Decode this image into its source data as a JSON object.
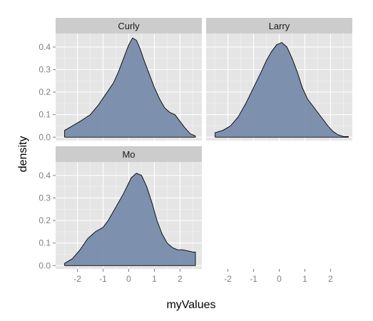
{
  "chart_data": {
    "type": "area",
    "xlabel": "myValues",
    "ylabel": "density",
    "xlim": [
      -2.85,
      2.85
    ],
    "ylim": [
      -0.015,
      0.46
    ],
    "x_ticks": [
      "-2",
      "-1",
      "0",
      "1",
      "2"
    ],
    "y_ticks": [
      "0.0",
      "0.1",
      "0.2",
      "0.3",
      "0.4"
    ],
    "grid": true,
    "fill_color": "#7186A6",
    "panel_background": "#E5E5E5",
    "strip_background": "#CCCCCC",
    "panels": [
      {
        "name": "Curly",
        "x": [
          -2.5,
          -2.2,
          -1.9,
          -1.5,
          -1.2,
          -0.9,
          -0.6,
          -0.4,
          -0.2,
          0,
          0.15,
          0.3,
          0.45,
          0.6,
          0.8,
          1.0,
          1.2,
          1.4,
          1.6,
          1.8,
          2.0,
          2.2,
          2.4,
          2.6
        ],
        "y": [
          0.03,
          0.05,
          0.07,
          0.1,
          0.14,
          0.19,
          0.24,
          0.29,
          0.35,
          0.41,
          0.44,
          0.43,
          0.39,
          0.34,
          0.28,
          0.22,
          0.17,
          0.13,
          0.11,
          0.1,
          0.07,
          0.04,
          0.015,
          0.005
        ]
      },
      {
        "name": "Larry",
        "x": [
          -2.5,
          -2.2,
          -1.9,
          -1.6,
          -1.3,
          -1.0,
          -0.7,
          -0.5,
          -0.3,
          -0.1,
          0.1,
          0.3,
          0.5,
          0.7,
          0.9,
          1.1,
          1.3,
          1.5,
          1.7,
          1.9,
          2.1,
          2.3,
          2.5,
          2.7
        ],
        "y": [
          0.02,
          0.03,
          0.05,
          0.09,
          0.15,
          0.22,
          0.29,
          0.34,
          0.38,
          0.41,
          0.42,
          0.4,
          0.35,
          0.29,
          0.22,
          0.17,
          0.14,
          0.11,
          0.08,
          0.05,
          0.025,
          0.01,
          0.003,
          0.002
        ]
      },
      {
        "name": "Mo",
        "x": [
          -2.5,
          -2.2,
          -1.9,
          -1.6,
          -1.3,
          -1.0,
          -0.8,
          -0.5,
          -0.2,
          0.1,
          0.3,
          0.5,
          0.7,
          0.9,
          1.1,
          1.3,
          1.5,
          1.7,
          1.9,
          2.1,
          2.3,
          2.5,
          2.6
        ],
        "y": [
          0.01,
          0.03,
          0.07,
          0.12,
          0.15,
          0.17,
          0.2,
          0.26,
          0.32,
          0.39,
          0.41,
          0.4,
          0.35,
          0.28,
          0.2,
          0.14,
          0.1,
          0.08,
          0.07,
          0.07,
          0.065,
          0.06,
          0.06
        ]
      }
    ]
  }
}
